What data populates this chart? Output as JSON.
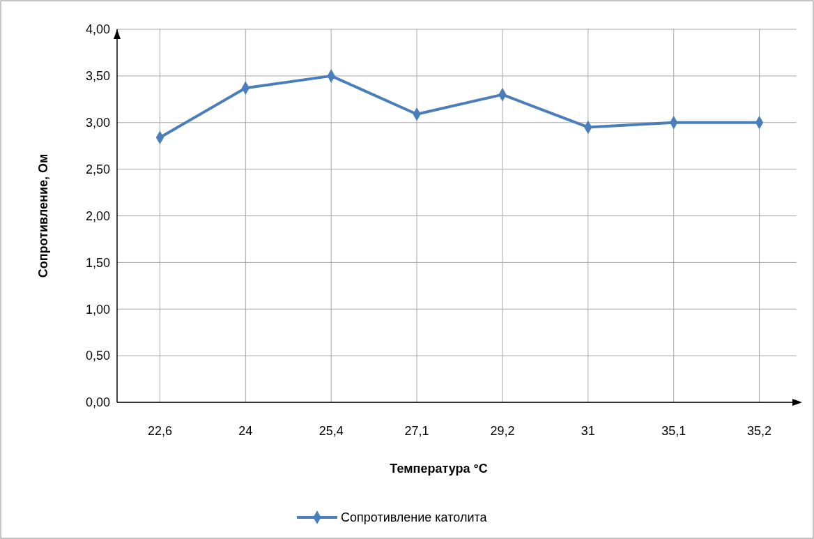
{
  "chart_data": {
    "type": "line",
    "xlabel": "Температура °C",
    "ylabel": "Сопротивление, Ом",
    "categories": [
      "22,6",
      "24",
      "25,4",
      "27,1",
      "29,2",
      "31",
      "35,1",
      "35,2"
    ],
    "series": [
      {
        "name": "Сопротивление католита",
        "color": "#4a7ebb",
        "values": [
          2.84,
          3.37,
          3.5,
          3.09,
          3.3,
          2.95,
          3.0,
          3.0
        ]
      }
    ],
    "ylim": [
      0,
      4
    ],
    "yticks": [
      {
        "value": 0,
        "label": "0,00"
      },
      {
        "value": 0.5,
        "label": "0,50"
      },
      {
        "value": 1,
        "label": "1,00"
      },
      {
        "value": 1.5,
        "label": "1,50"
      },
      {
        "value": 2,
        "label": "2,00"
      },
      {
        "value": 2.5,
        "label": "2,50"
      },
      {
        "value": 3,
        "label": "3,00"
      },
      {
        "value": 3.5,
        "label": "3,50"
      },
      {
        "value": 4,
        "label": "4,00"
      }
    ],
    "grid": true,
    "legend": "bottom",
    "marker": "diamond",
    "line_style": "solid"
  }
}
